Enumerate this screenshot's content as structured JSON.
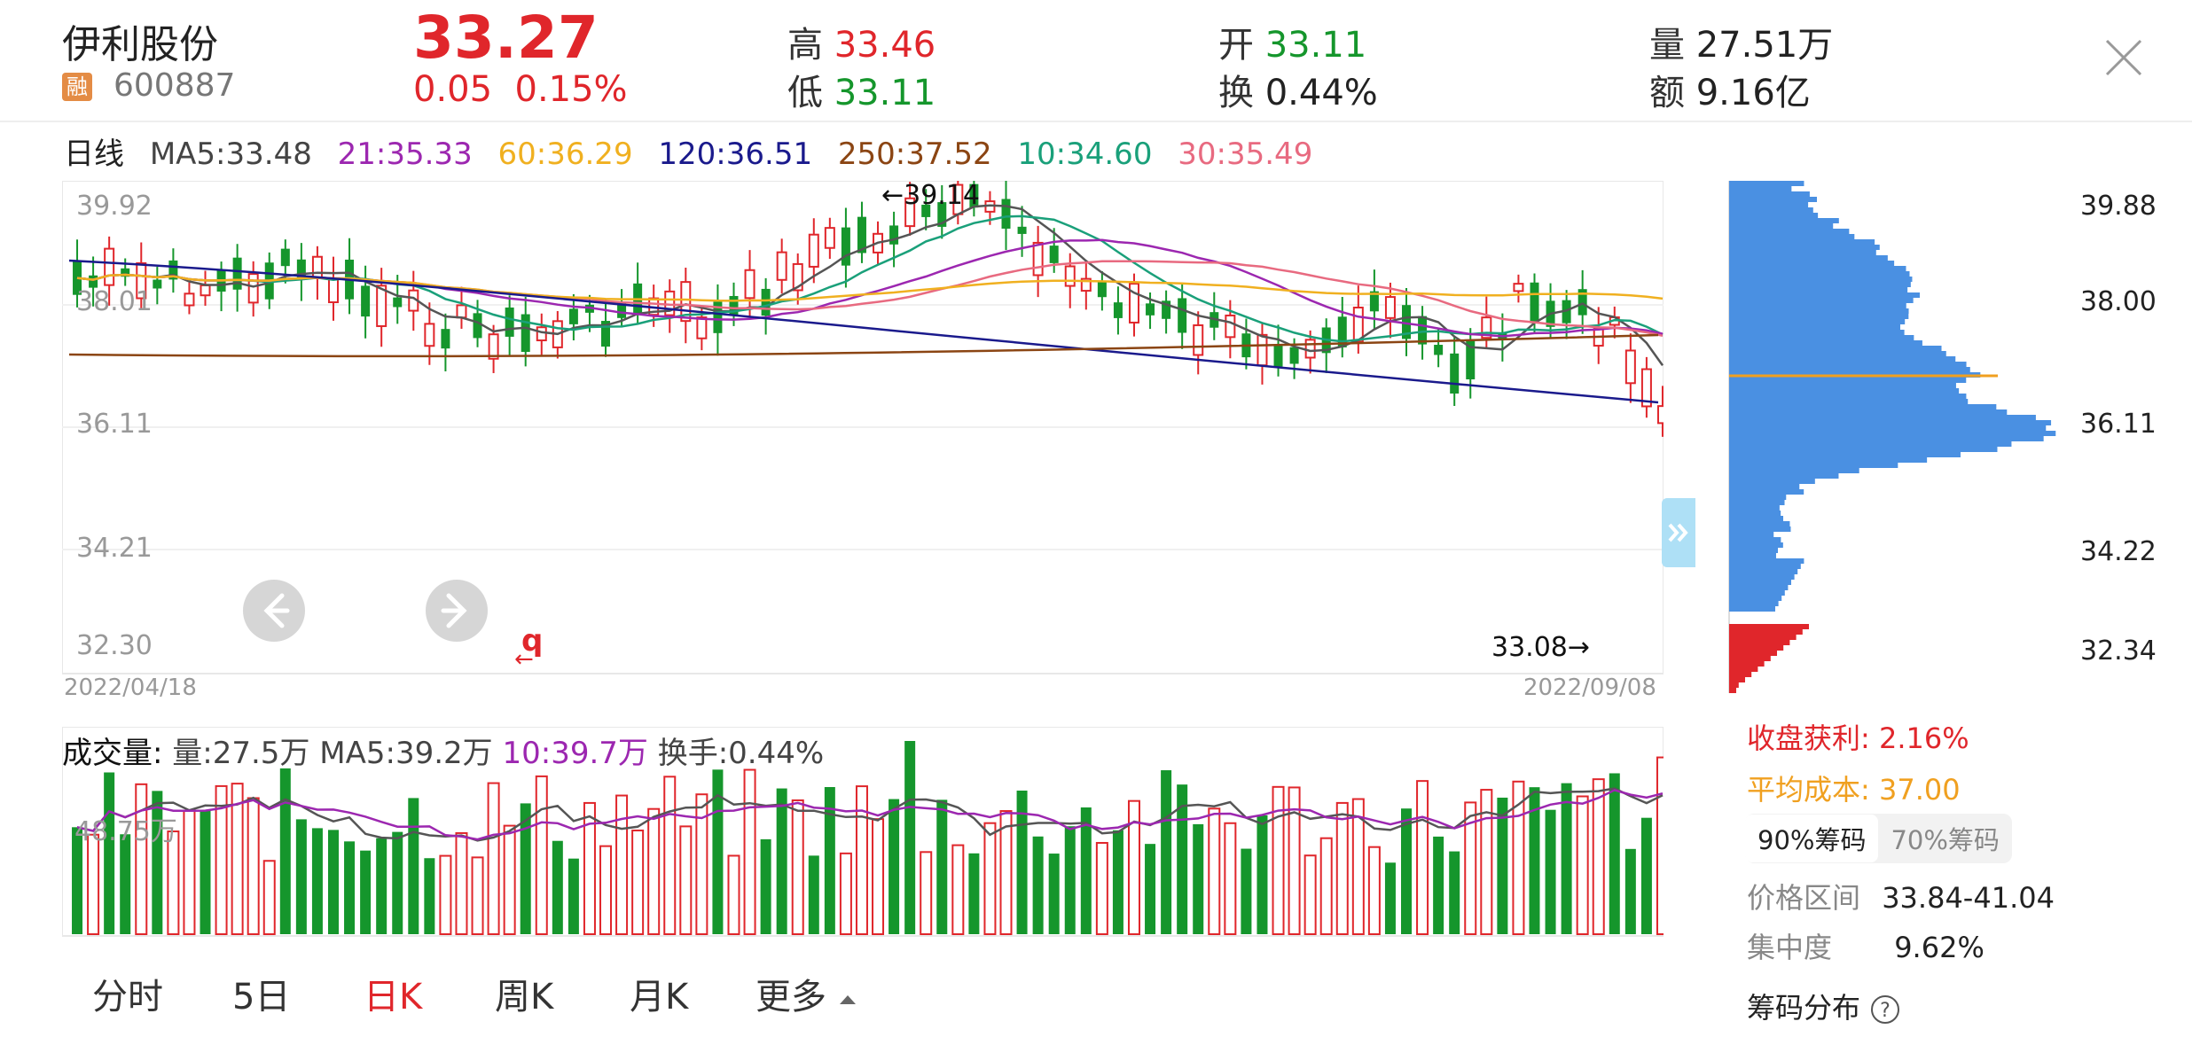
{
  "header": {
    "name": "伊利股份",
    "rz_badge": "融",
    "code": "600887",
    "price": "33.27",
    "change": "0.05  0.15%",
    "high_label": "高",
    "high_value": "33.46",
    "low_label": "低",
    "low_value": "33.11",
    "open_label": "开",
    "open_value": "33.11",
    "turnover_label": "换",
    "turnover_value": "0.44%",
    "volume_label": "量",
    "volume_value": "27.51万",
    "amount_label": "额",
    "amount_value": "9.16亿"
  },
  "ma_legend": {
    "period": "日线",
    "ma5": "MA5:33.48",
    "ma21": "21:35.33",
    "ma60": "60:36.29",
    "ma120": "120:36.51",
    "ma250": "250:37.52",
    "ma10": "10:34.60",
    "ma30": "30:35.49"
  },
  "kline": {
    "y_ticks": [
      "39.92",
      "38.01",
      "36.11",
      "34.21",
      "32.30"
    ],
    "max_annotation": "←39.14",
    "min_annotation": "33.08→",
    "date_start": "2022/04/18",
    "date_end": "2022/09/08",
    "marker_q": "q"
  },
  "volume": {
    "label": "成交量:",
    "vol": "量:27.5万",
    "ma5": "MA5:39.2万",
    "ma10": "10:39.7万",
    "turnover": "换手:0.44%",
    "y_tick": "48.75万"
  },
  "chip": {
    "y_ticks": [
      "39.88",
      "38.00",
      "36.11",
      "34.22",
      "32.34"
    ],
    "profit_label": "收盘获利:",
    "profit_value": "2.16%",
    "avg_cost_label": "平均成本:",
    "avg_cost_value": "37.00",
    "seg_90": "90%筹码",
    "seg_70": "70%筹码",
    "range_label": "价格区间",
    "range_value": "33.84-41.04",
    "concentration_label": "集中度",
    "concentration_value": "9.62%",
    "distribution_label": "筹码分布"
  },
  "tabs": [
    "分时",
    "5日",
    "日K",
    "周K",
    "月K",
    "更多"
  ],
  "active_tab": "日K",
  "colors": {
    "up": "#e0262b",
    "down": "#15962c",
    "chip_blue": "#4a90e2",
    "avg_cost": "#f0a020"
  },
  "icons": [
    "close-icon",
    "arrow-left-icon",
    "arrow-right-icon",
    "collapse-panel-icon",
    "help-icon",
    "caret-up-icon"
  ]
}
